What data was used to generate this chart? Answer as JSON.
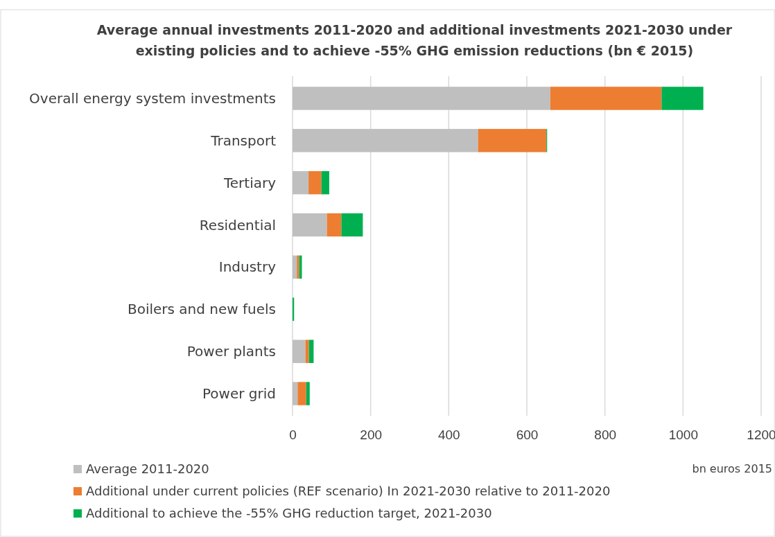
{
  "chart_data": {
    "type": "bar",
    "orientation": "horizontal",
    "stacked": true,
    "title": "Average annual investments 2011-2020 and additional investments 2021-2030 under existing policies and to achieve -55% GHG emission reductions (bn € 2015)",
    "xlabel": "bn euros 2015",
    "categories": [
      "Overall energy system investments",
      "Transport",
      "Tertiary",
      "Residential",
      "Industry",
      "Boilers and new fuels",
      "Power plants",
      "Power grid"
    ],
    "series": [
      {
        "name": "Average 2011-2020",
        "color": "#bfbfbf",
        "values": [
          660,
          475,
          41,
          88,
          11,
          0,
          33,
          13
        ]
      },
      {
        "name": "Additional under current policies (REF scenario) In 2021-2030 relative to 2011-2020",
        "color": "#ed7d31",
        "values": [
          285,
          175,
          33,
          37,
          6,
          0,
          9,
          22
        ]
      },
      {
        "name": "Additional to achieve the -55% GHG reduction target, 2021-2030",
        "color": "#00b050",
        "values": [
          107,
          2,
          20,
          55,
          7,
          4,
          12,
          9
        ]
      }
    ],
    "xlim": [
      0,
      1200
    ],
    "xticks": [
      0,
      200,
      400,
      600,
      800,
      1000,
      1200
    ],
    "grid": "x",
    "legend": "bottom left"
  }
}
